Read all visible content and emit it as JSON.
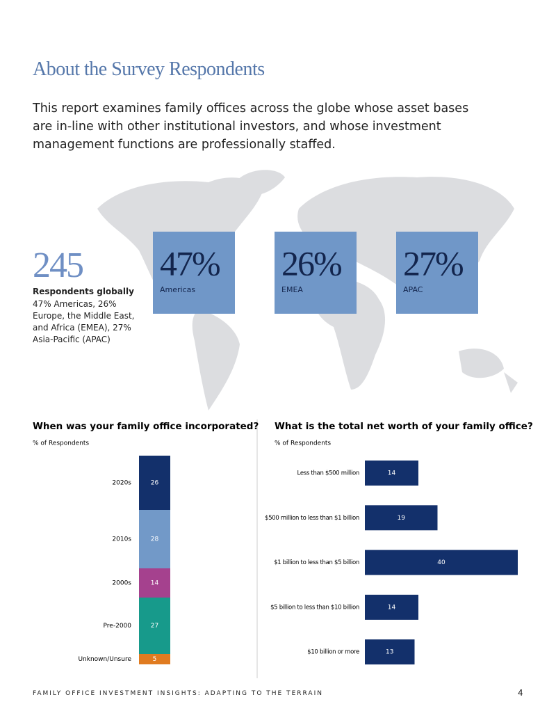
{
  "header": {
    "title": "About the Survey Respondents",
    "intro": "This report examines family offices across the globe whose asset bases are in-line with other institutional investors, and whose investment management functions are professionally staffed."
  },
  "summary": {
    "total": "245",
    "label": "Respondents globally",
    "text": "47% Americas, 26% Europe, the Middle East, and Africa (EMEA), 27% Asia-Pacific (APAC)"
  },
  "regions": [
    {
      "value": "47%",
      "label": "Americas"
    },
    {
      "value": "26%",
      "label": "EMEA"
    },
    {
      "value": "27%",
      "label": "APAC"
    }
  ],
  "chart_data": [
    {
      "type": "stacked-bar",
      "title": "When was your family office incorporated?",
      "subtitle": "% of Respondents",
      "categories": [
        "2020s",
        "2010s",
        "2000s",
        "Pre-2000",
        "Unknown/Unsure"
      ],
      "values": [
        26,
        28,
        14,
        27,
        5
      ],
      "colors": [
        "#13306b",
        "#7299c8",
        "#a5418e",
        "#179a8b",
        "#e07b20"
      ]
    },
    {
      "type": "hbar",
      "title": "What is the total net worth of your family office?",
      "subtitle": "% of Respondents",
      "categories": [
        "Less than $500 million",
        "$500 million to less than $1 billion",
        "$1 billion to less than $5 billion",
        "$5 billion to less than $10 billion",
        "$10 billion or more"
      ],
      "values": [
        14,
        19,
        40,
        14,
        13
      ],
      "color": "#13306b"
    }
  ],
  "footer": {
    "text": "FAMILY OFFICE INVESTMENT INSIGHTS: ADAPTING TO THE TERRAIN",
    "page": "4"
  }
}
